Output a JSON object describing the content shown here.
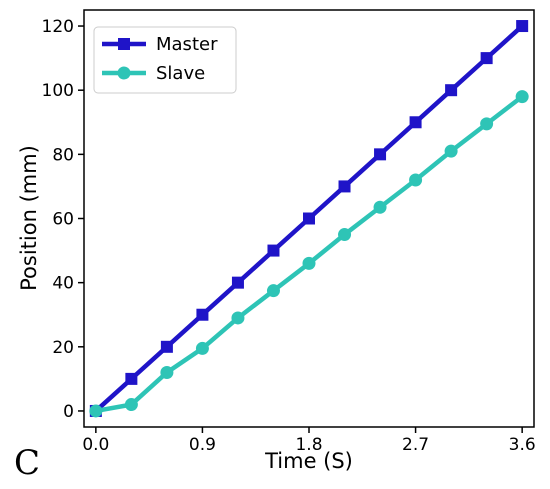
{
  "panel_label": "C",
  "chart_data": {
    "type": "line",
    "xlabel": "Time (S)",
    "ylabel": "Position (mm)",
    "xlim": [
      -0.1,
      3.7
    ],
    "ylim": [
      -5,
      125
    ],
    "x_ticks": [
      "0.0",
      "0.9",
      "1.8",
      "2.7",
      "3.6"
    ],
    "y_ticks": [
      "0",
      "20",
      "40",
      "60",
      "80",
      "100",
      "120"
    ],
    "legend_position": "upper-left",
    "grid": false,
    "series": [
      {
        "name": "Master",
        "color": "#1f14c8",
        "marker": "square",
        "x": [
          0.0,
          0.3,
          0.6,
          0.9,
          1.2,
          1.5,
          1.8,
          2.1,
          2.4,
          2.7,
          3.0,
          3.3,
          3.6
        ],
        "y": [
          0,
          10,
          20,
          30,
          40,
          50,
          60,
          70,
          80,
          90,
          100,
          110,
          120
        ]
      },
      {
        "name": "Slave",
        "color": "#2ec4b6",
        "marker": "circle",
        "x": [
          0.0,
          0.3,
          0.6,
          0.9,
          1.2,
          1.5,
          1.8,
          2.1,
          2.4,
          2.7,
          3.0,
          3.3,
          3.6
        ],
        "y": [
          0,
          2,
          12,
          19.5,
          29,
          37.5,
          46,
          55,
          63.5,
          72,
          81,
          89.5,
          98
        ]
      }
    ]
  }
}
